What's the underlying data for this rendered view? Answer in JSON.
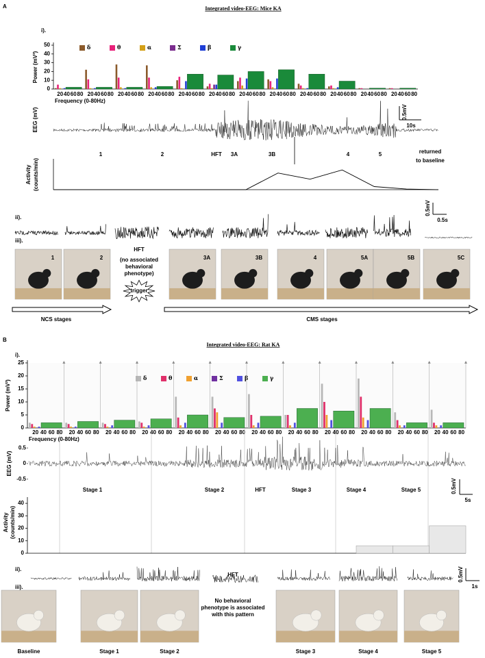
{
  "panel_a": {
    "label": "A",
    "title": "Integrated video-EEG: Mice KA",
    "parts": [
      "i).",
      "ii).",
      "iii)."
    ],
    "power": {
      "type": "bar",
      "ylabel": "Power (mV²)",
      "xlabel": "Frequency (0-80Hz)",
      "ylim": [
        0,
        50
      ],
      "yticks": [
        0,
        10,
        20,
        30,
        40,
        50
      ],
      "freq_ticks": [
        20,
        40,
        60,
        80
      ],
      "bands": [
        {
          "name": "δ",
          "color": "#8b5a2b"
        },
        {
          "name": "θ",
          "color": "#e8227a"
        },
        {
          "name": "α",
          "color": "#d4a017"
        },
        {
          "name": "Σ",
          "color": "#7b2d8e"
        },
        {
          "name": "β",
          "color": "#1f3fd6"
        },
        {
          "name": "γ",
          "color": "#1a8a3a"
        }
      ],
      "windows": [
        [
          1,
          5,
          1,
          0,
          1,
          2
        ],
        [
          22,
          11,
          1,
          0,
          1,
          2
        ],
        [
          28,
          13,
          2,
          0,
          1,
          2
        ],
        [
          27,
          13,
          2,
          0,
          2,
          3
        ],
        [
          10,
          14,
          1,
          0,
          9,
          17
        ],
        [
          3,
          6,
          1,
          5,
          5,
          16
        ],
        [
          9,
          13,
          4,
          0,
          12,
          20
        ],
        [
          11,
          9,
          2,
          0,
          12,
          22
        ],
        [
          6,
          4,
          1,
          0,
          1,
          17
        ],
        [
          3,
          4,
          1,
          0,
          2,
          9
        ],
        [
          1,
          1,
          0,
          0,
          0,
          1
        ],
        [
          1,
          1,
          0,
          0,
          0,
          1
        ]
      ]
    },
    "eeg": {
      "ylabel": "EEG (mV)",
      "scale_v": "0.5mV",
      "scale_t": "10s"
    },
    "stages": [
      "1",
      "2",
      "HFT",
      "3A",
      "3B",
      "4",
      "5"
    ],
    "baseline_note": [
      "returned",
      "to baseline"
    ],
    "activity": {
      "type": "line",
      "ylabel": [
        "Activity",
        "(counts/min)"
      ],
      "ylim": [
        0,
        50
      ],
      "values": [
        0,
        0,
        0,
        0,
        0,
        0,
        0,
        27,
        17,
        32,
        5,
        1,
        0
      ]
    },
    "trace_scale": [
      "0.5mV",
      "0.5s"
    ],
    "photos": [
      "1",
      "2",
      "3A",
      "3B",
      "4",
      "5A",
      "5B",
      "5C"
    ],
    "hft": {
      "label": "HFT",
      "note": [
        "(no associated",
        "behavioral",
        "phenotype)"
      ],
      "trigger": "trigger"
    },
    "arrows": [
      "NCS stages",
      "CMS stages"
    ]
  },
  "panel_b": {
    "label": "B",
    "title": "Integrated video-EEG: Rat KA",
    "parts": [
      "i).",
      "ii).",
      "iii)."
    ],
    "power": {
      "type": "bar",
      "ylabel": "Power (mV²)",
      "xlabel": "Frequency (0-80Hz)",
      "ylim": [
        0,
        25
      ],
      "yticks": [
        0,
        5,
        10,
        15,
        20,
        25
      ],
      "freq_ticks": [
        20,
        40,
        60,
        80
      ],
      "bands": [
        {
          "name": "δ",
          "color": "#b8b8b8"
        },
        {
          "name": "θ",
          "color": "#e0306a"
        },
        {
          "name": "α",
          "color": "#f0a030"
        },
        {
          "name": "Σ",
          "color": "#7030a0"
        },
        {
          "name": "β",
          "color": "#5050e0"
        },
        {
          "name": "γ",
          "color": "#4caf50"
        }
      ],
      "windows": [
        [
          2,
          1.5,
          0.5,
          0,
          0.5,
          2
        ],
        [
          2,
          1.5,
          0.5,
          0,
          0.5,
          2.5
        ],
        [
          2,
          1.5,
          0.5,
          0,
          1,
          3
        ],
        [
          2.5,
          2,
          0.5,
          0,
          1,
          3.5
        ],
        [
          12,
          4,
          1,
          0,
          2,
          5
        ],
        [
          12,
          7.5,
          6,
          0,
          2,
          4
        ],
        [
          13,
          5,
          1,
          0,
          2,
          4.5
        ],
        [
          5,
          5,
          1,
          0,
          2,
          7.5
        ],
        [
          17,
          10,
          5,
          0,
          3,
          6.5
        ],
        [
          19,
          12,
          4,
          0,
          3,
          7.5
        ],
        [
          6,
          3,
          1,
          0,
          1,
          2
        ],
        [
          7,
          2,
          1,
          0,
          1,
          2
        ]
      ]
    },
    "eeg": {
      "ylabel": "EEG (mV)",
      "ylim": [
        -0.7,
        0.7
      ],
      "yticks": [
        0.5,
        0,
        -0.5
      ],
      "scale_v": "0.5mV",
      "scale_t": "5s"
    },
    "stages": [
      "Stage 1",
      "Stage 2",
      "HFT",
      "Stage 3",
      "Stage 4",
      "Stage 5"
    ],
    "activity": {
      "type": "bar",
      "ylabel": [
        "Activity",
        "(counts/min)"
      ],
      "ylim": [
        0,
        45
      ],
      "yticks": [
        0,
        10,
        20,
        30,
        40
      ],
      "values": [
        0,
        0,
        0,
        0,
        0,
        0,
        0,
        0,
        0,
        6,
        6,
        22
      ]
    },
    "trace_scale": [
      "0.5mV",
      "1s"
    ],
    "hft": {
      "label": "HFT",
      "note": [
        "No behavioral",
        "phenotype is associated",
        "with this pattern"
      ]
    },
    "photos": [
      "Baseline",
      "Stage 1",
      "Stage 2",
      "Stage 3",
      "Stage 4",
      "Stage 5"
    ]
  }
}
